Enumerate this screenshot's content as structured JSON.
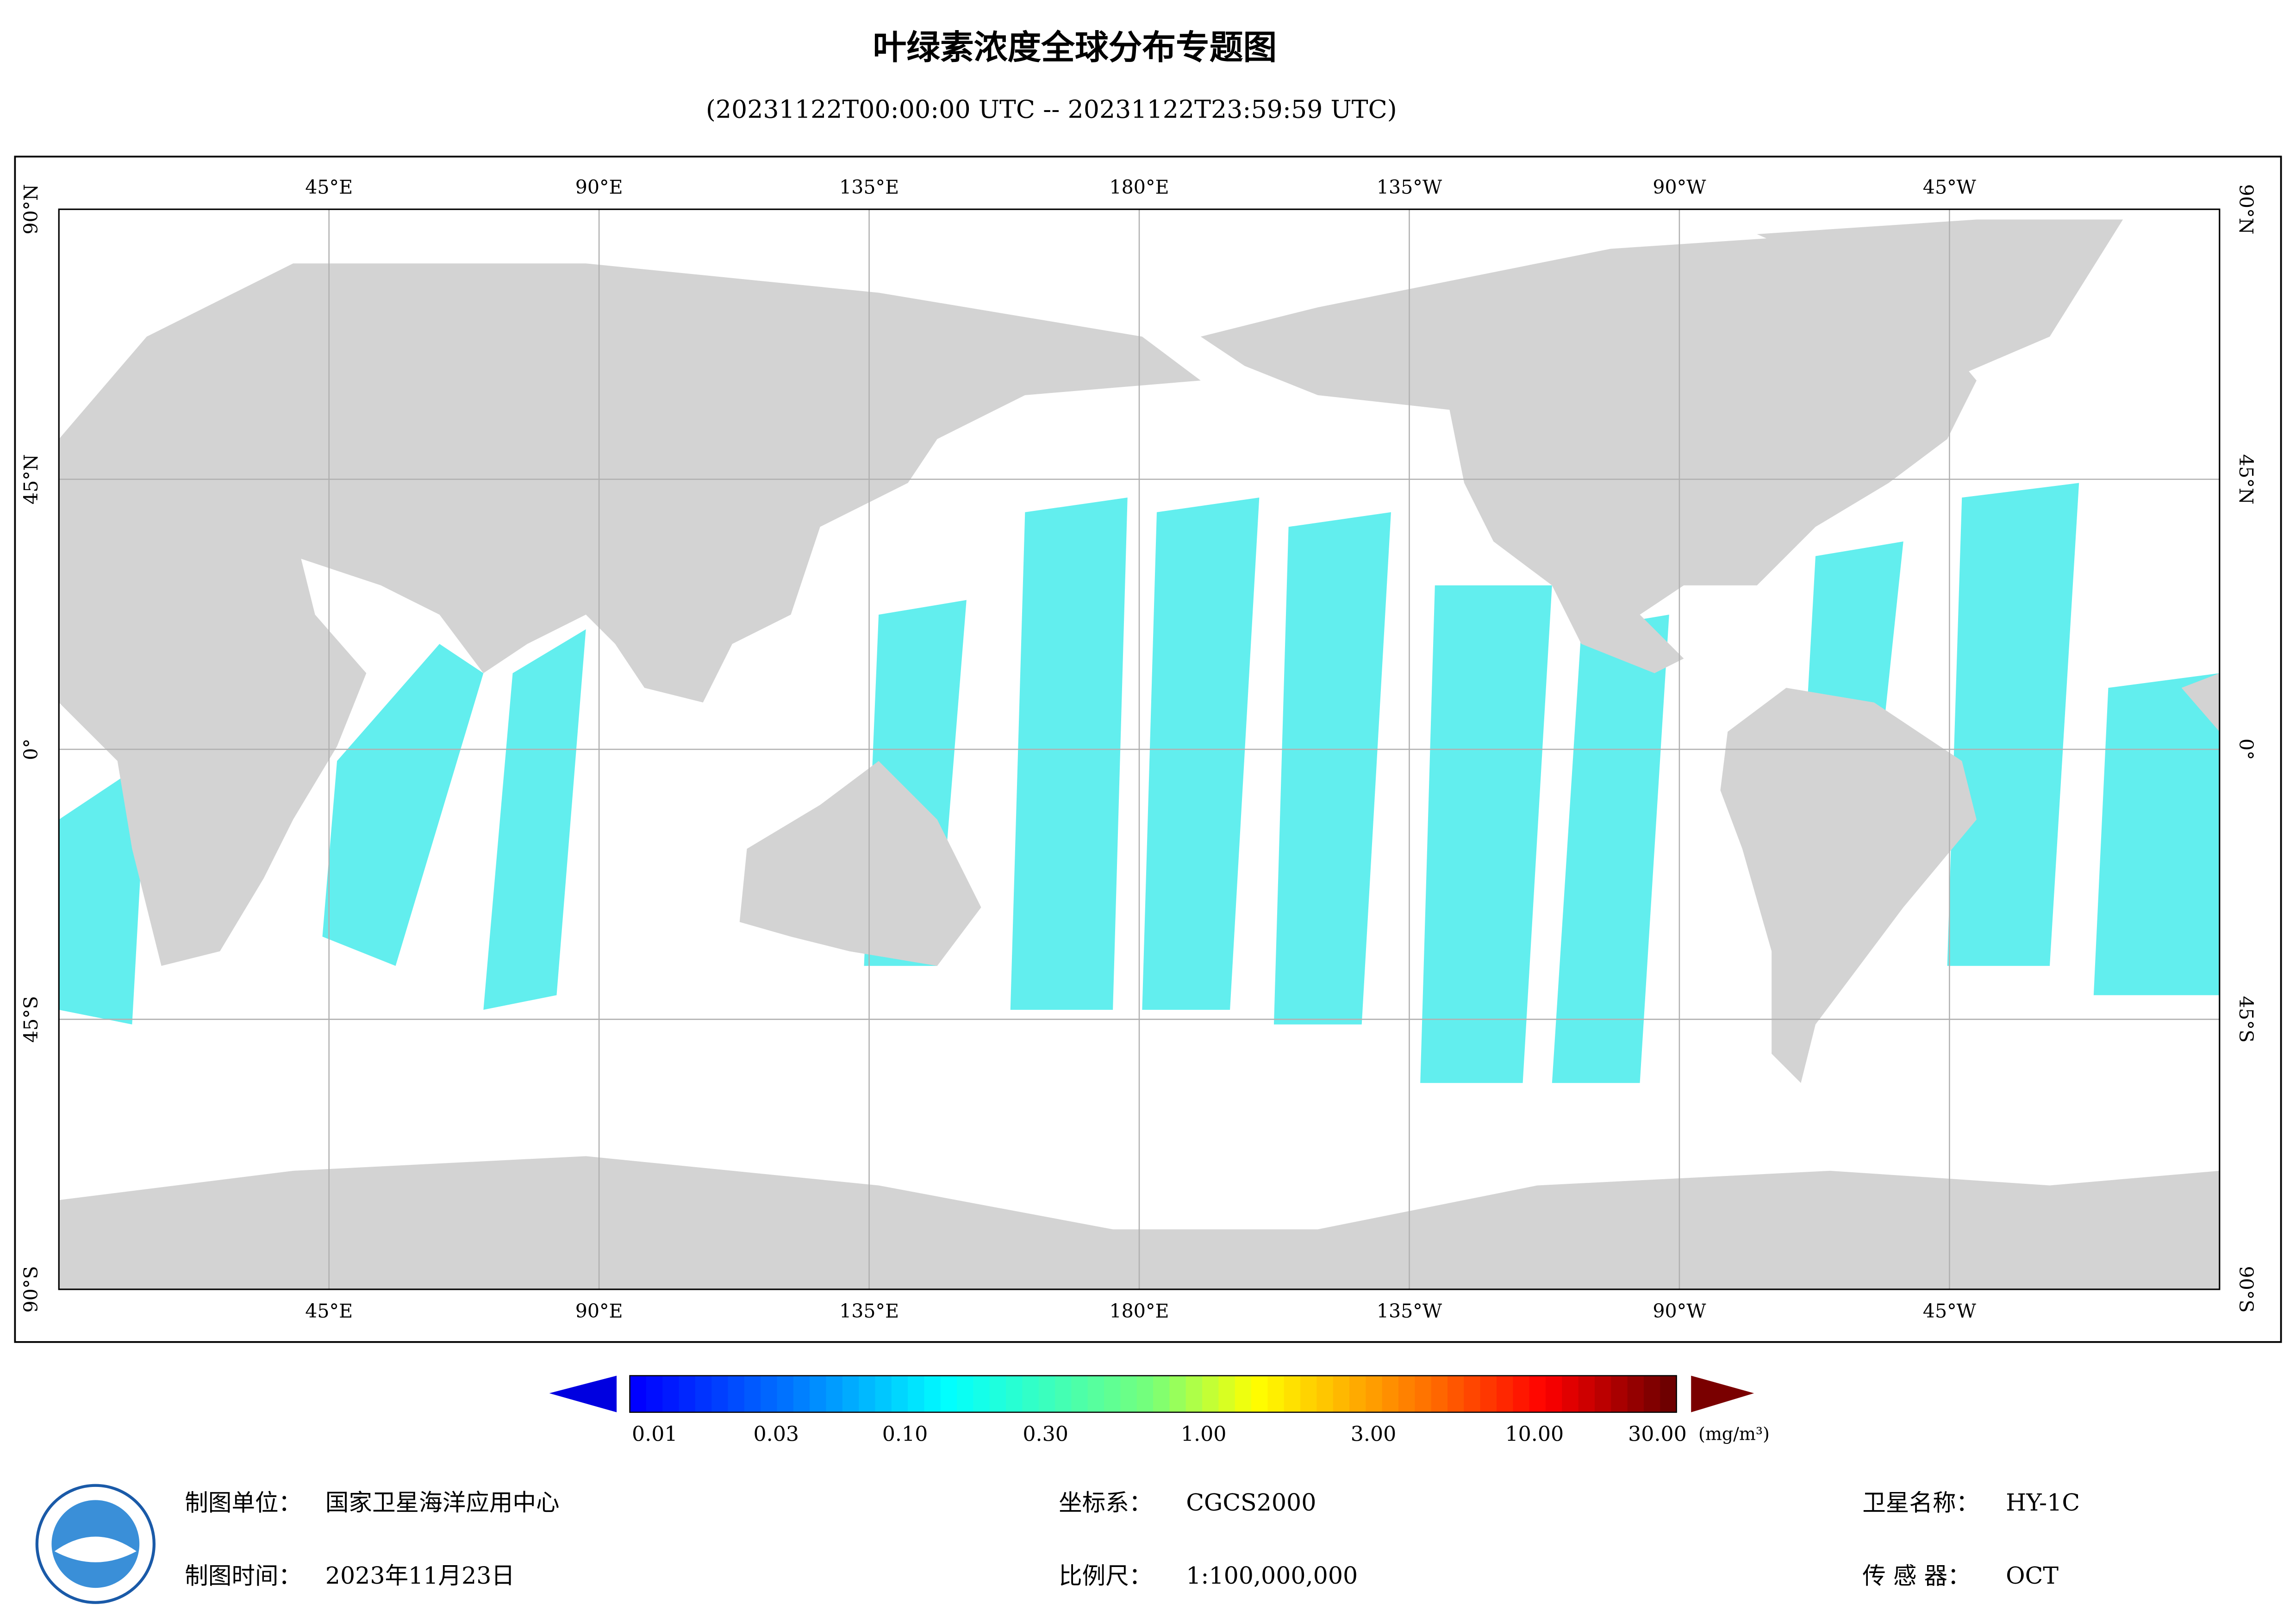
{
  "title": "叶绿素浓度全球分布专题图",
  "subtitle": "(20231122T00:00:00 UTC -- 20231122T23:59:59 UTC)",
  "map": {
    "lon_labels": [
      "45°E",
      "90°E",
      "135°E",
      "180°E",
      "135°W",
      "90°W",
      "45°W"
    ],
    "lat_labels": [
      "90°N",
      "45°N",
      "0°",
      "45°S",
      "90°S"
    ]
  },
  "colorbar": {
    "ticks": [
      "0.01",
      "0.03",
      "0.10",
      "0.30",
      "1.00",
      "3.00",
      "10.00",
      "30.00"
    ],
    "unit": "(mg/m³)"
  },
  "footer": {
    "producer": {
      "label": "制图单位：",
      "value": "国家卫星海洋应用中心"
    },
    "date": {
      "label": "制图时间：",
      "value": "2023年11月23日"
    },
    "crs": {
      "label": "坐标系：",
      "value": "CGCS2000"
    },
    "scale": {
      "label": "比例尺：",
      "value": "1:100,000,000"
    },
    "satellite": {
      "label": "卫星名称：",
      "value": "HY-1C"
    },
    "sensor": {
      "label": "传 感 器：",
      "value": "OCT"
    }
  }
}
